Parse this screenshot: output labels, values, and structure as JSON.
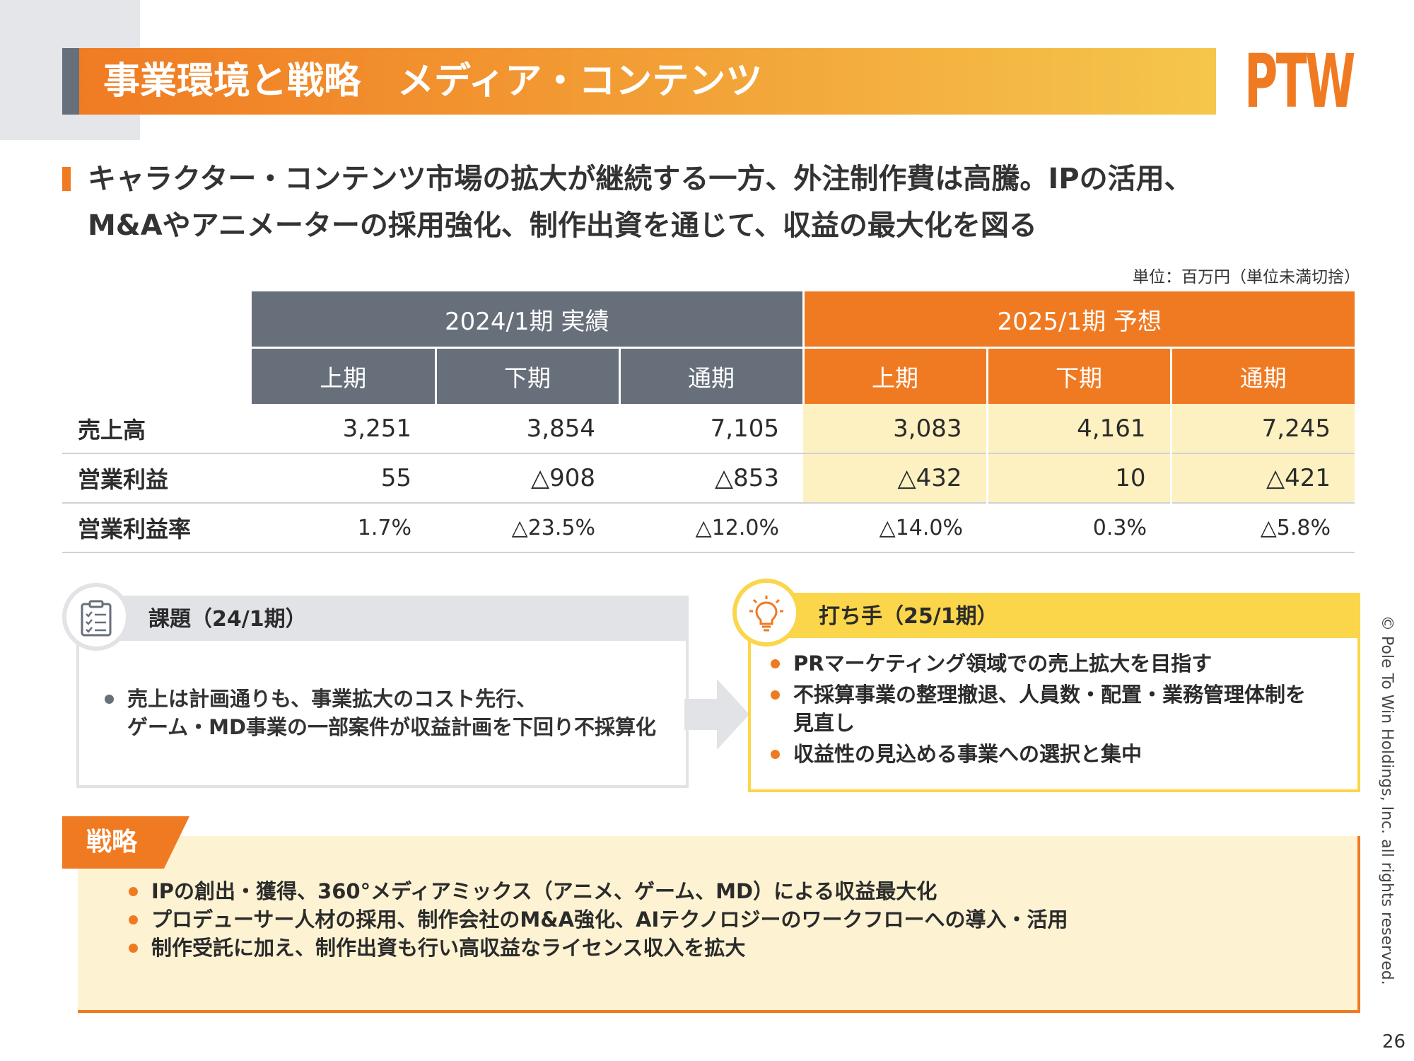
{
  "header": {
    "title": "事業環境と戦略　メディア・コンテンツ",
    "logo": "PTW"
  },
  "headline": {
    "line1": "キャラクター・コンテンツ市場の拡大が継続する一方、外注制作費は高騰。IPの活用、",
    "line2": "M&Aやアニメーターの採用強化、制作出資を通じて、収益の最大化を図る"
  },
  "unit_note": "単位：百万円（単位未満切捨）",
  "table": {
    "groups": [
      "2024/1期 実績",
      "2025/1期 予想"
    ],
    "subheaders": [
      "上期",
      "下期",
      "通期",
      "上期",
      "下期",
      "通期"
    ],
    "rows": [
      {
        "label": "売上高",
        "values": [
          "3,251",
          "3,854",
          "7,105",
          "3,083",
          "4,161",
          "7,245"
        ]
      },
      {
        "label": "営業利益",
        "values": [
          "55",
          "△908",
          "△853",
          "△432",
          "10",
          "△421"
        ]
      },
      {
        "label": "営業利益率",
        "values": [
          "1.7%",
          "△23.5%",
          "△12.0%",
          "△14.0%",
          "0.3%",
          "△5.8%"
        ]
      }
    ]
  },
  "issues": {
    "title": "課題（24/1期）",
    "icon": "checklist-icon",
    "items": [
      "売上は計画通りも、事業拡大のコスト先行、ゲーム・MD事業の一部案件が収益計画を下回り不採算化"
    ],
    "items_lines": [
      "売上は計画通りも、事業拡大のコスト先行、",
      "ゲーム・MD事業の一部案件が収益計画を下回り不採算化"
    ]
  },
  "actions": {
    "title": "打ち手（25/1期）",
    "icon": "lightbulb-icon",
    "items": [
      "PRマーケティング領域での売上拡大を目指す",
      "不採算事業の整理撤退、人員数・配置・業務管理体制を見直し",
      "収益性の見込める事業への選択と集中"
    ],
    "item2_lines": [
      "不採算事業の整理撤退、人員数・配置・業務管理体制を",
      "見直し"
    ]
  },
  "strategy": {
    "label": "戦略",
    "items": [
      "IPの創出・獲得、360°メディアミックス（アニメ、ゲーム、MD）による収益最大化",
      "プロデューサー人材の採用、制作会社のM&A強化、AIテクノロジーのワークフローへの導入・活用",
      "制作受託に加え、制作出資も行い高収益なライセンス収入を拡大"
    ]
  },
  "footer": {
    "copyright": "© Pole To Win Holdings, Inc. all rights reserved.",
    "page": "26"
  },
  "colors": {
    "accent": "#f07a22",
    "gray": "#666f7a",
    "yellow": "#fbd64a",
    "forecast_bg": "#fdf1c1"
  }
}
